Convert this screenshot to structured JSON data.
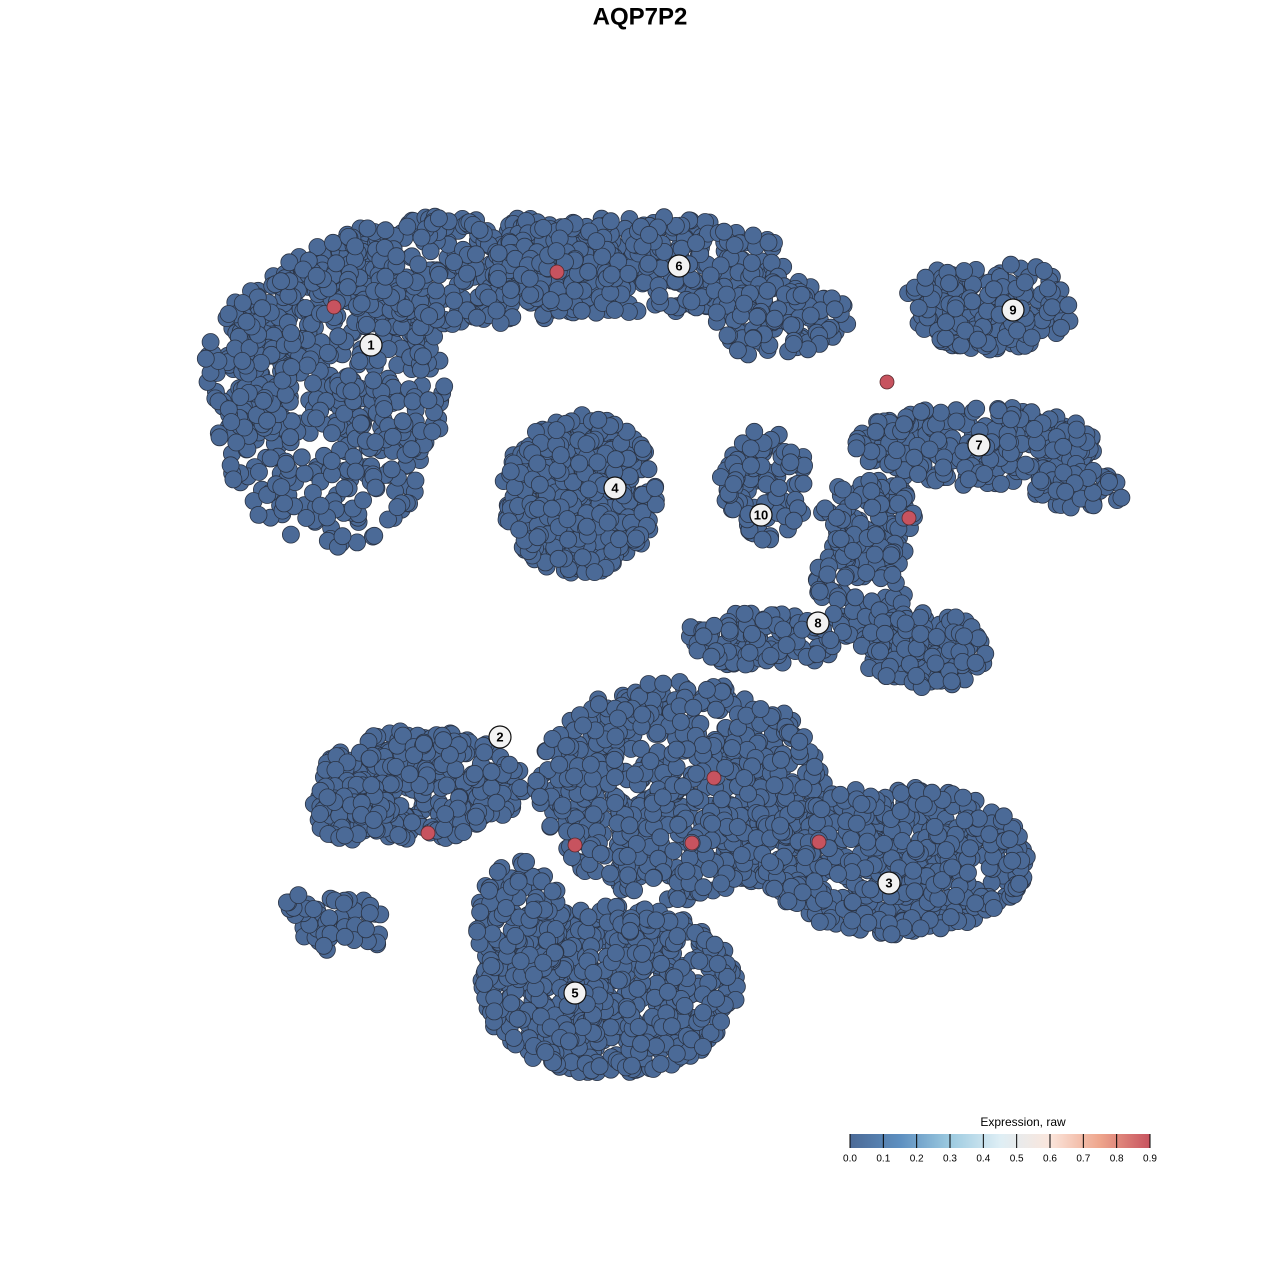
{
  "chart_data": {
    "type": "scatter",
    "title": "AQP7P2",
    "cluster_labels": [
      "1",
      "2",
      "3",
      "4",
      "5",
      "6",
      "7",
      "8",
      "9",
      "10"
    ],
    "expressed_values": [
      0.9,
      0.9,
      0.9,
      0.9,
      0.9,
      0.9,
      0.9,
      0.9,
      0.9
    ],
    "colorbar_title": "Expression, raw",
    "clim": [
      0,
      0.9
    ],
    "colorbar_ticks": [
      {
        "value": 0,
        "label": "0.0"
      },
      0.1,
      0.2,
      0.3,
      0.4,
      0.5,
      0.6,
      0.7,
      0.8,
      0.9
    ],
    "colormap": [
      "#4b6a97",
      "#5d8fc0",
      "#9ccae0",
      "#deeef5",
      "#fbe6dc",
      "#eea58c",
      "#c7535f"
    ]
  }
}
